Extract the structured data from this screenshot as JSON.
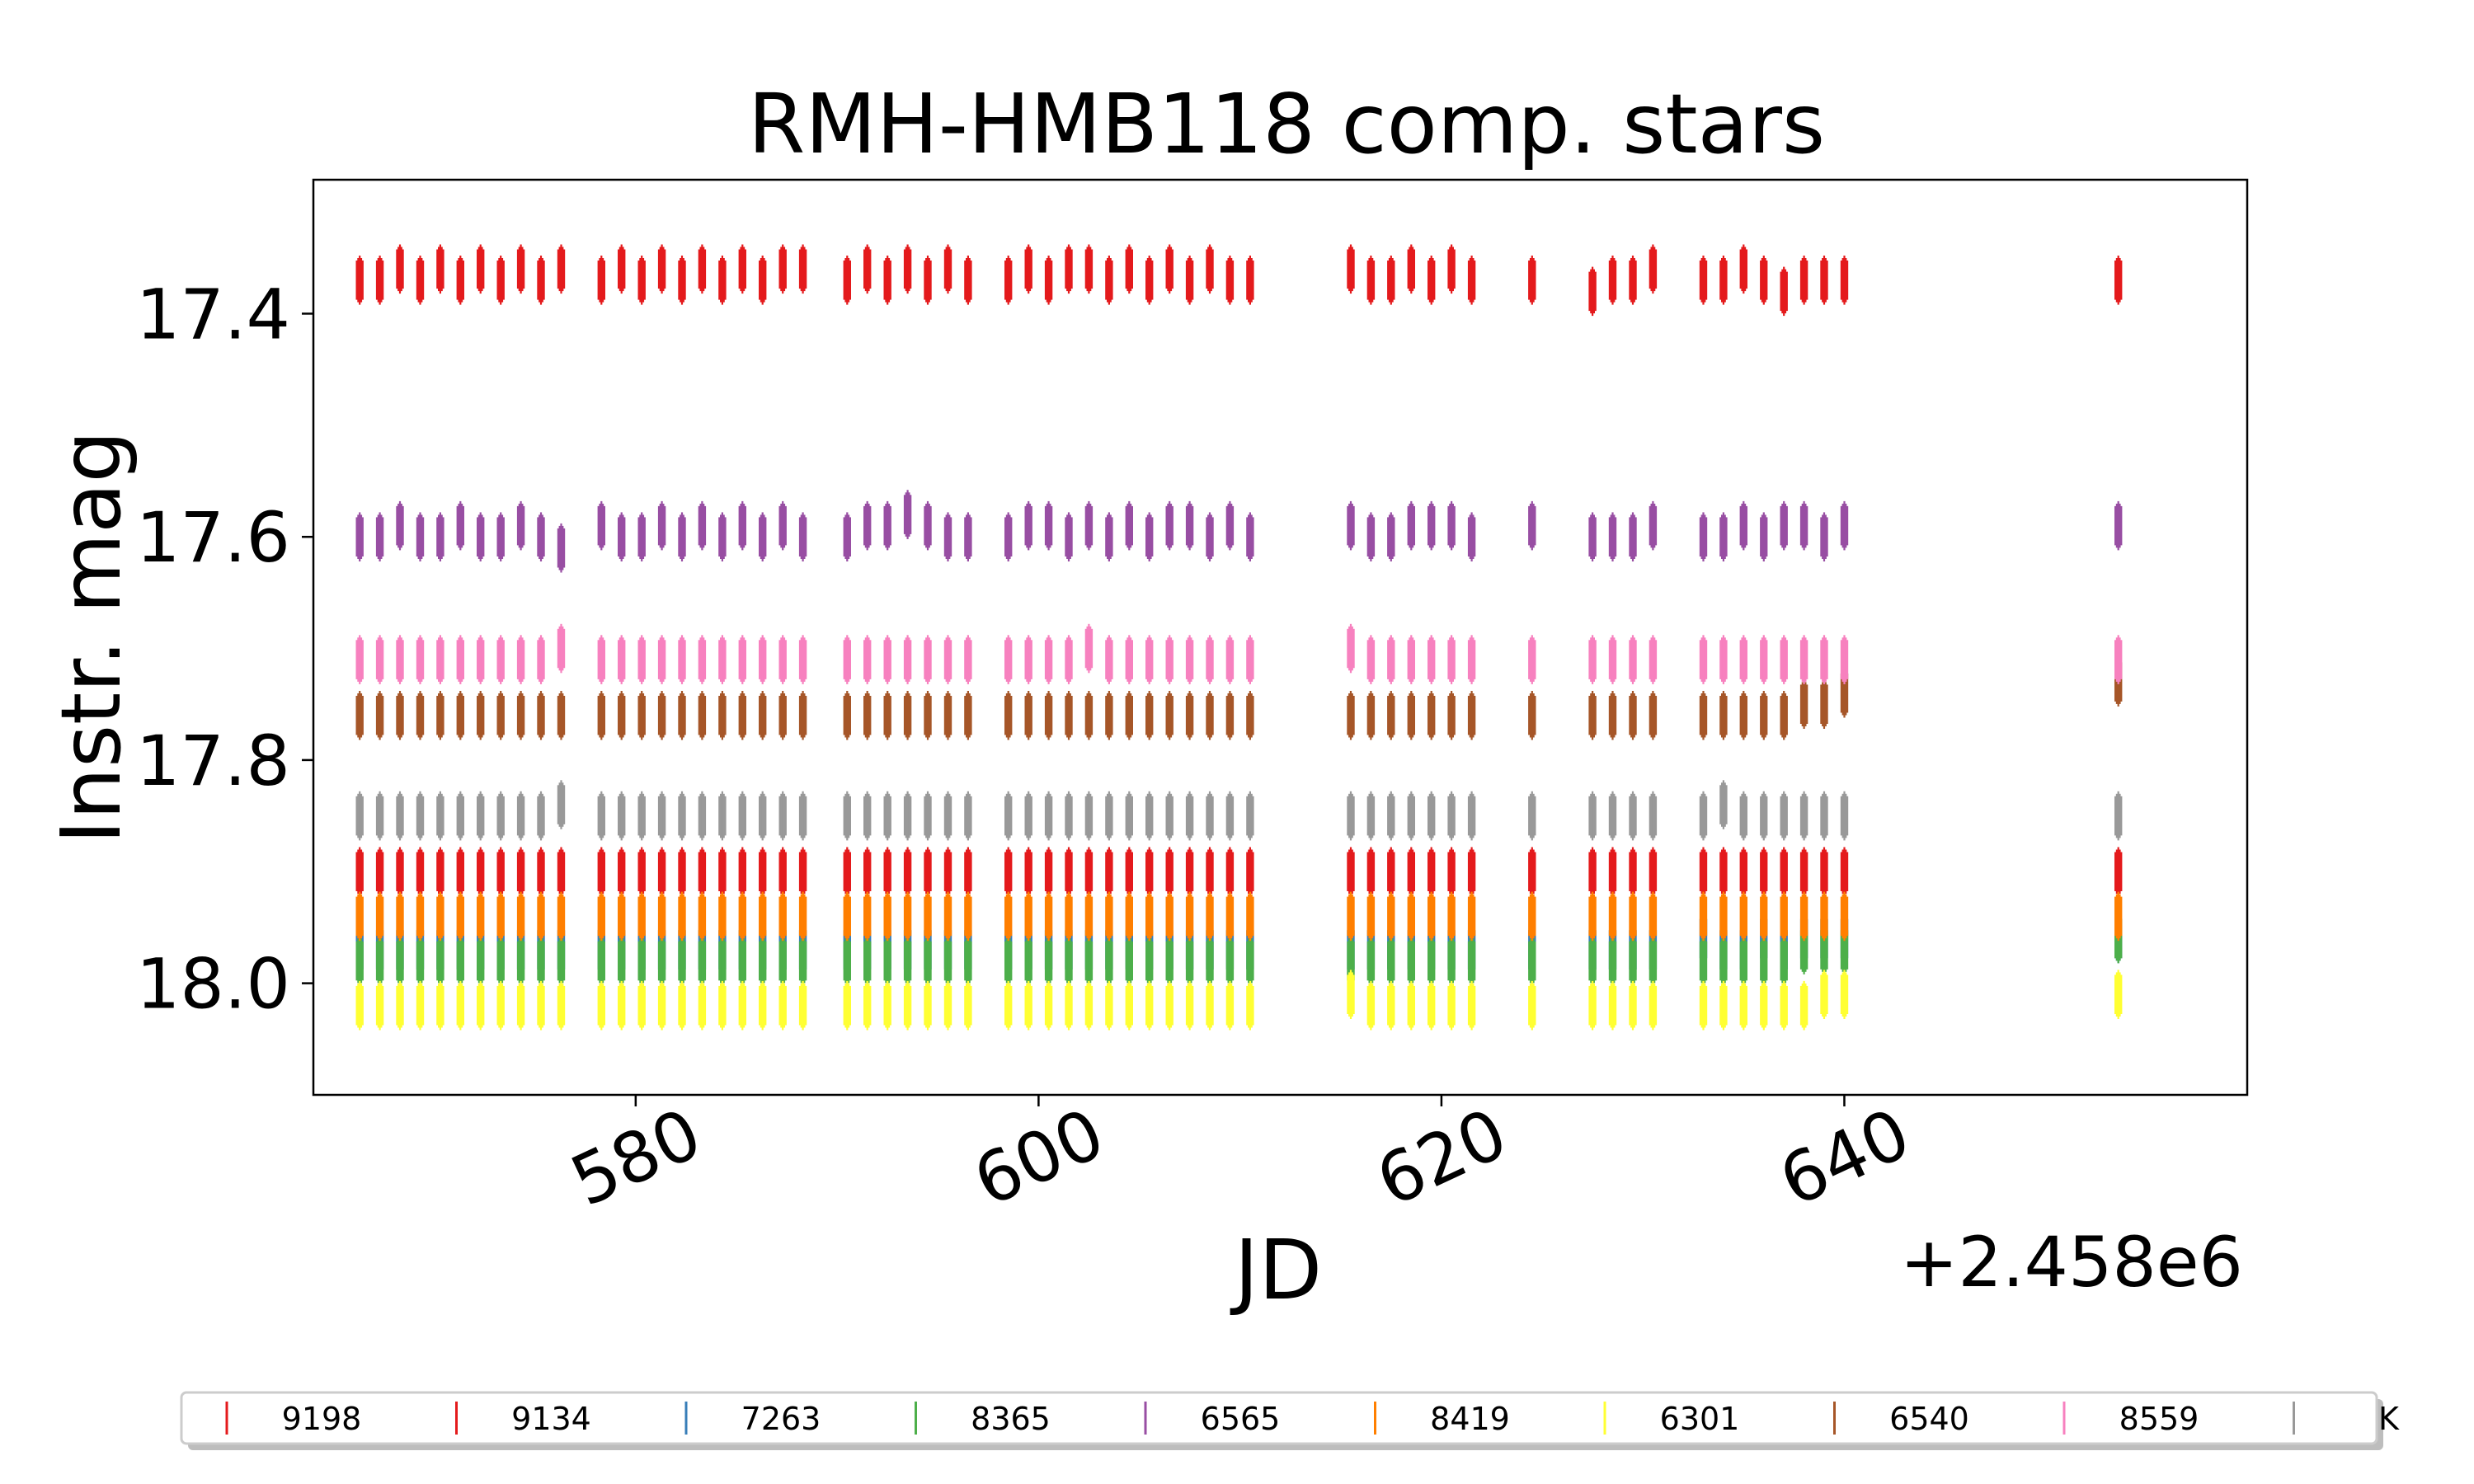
{
  "chart_data": {
    "type": "scatter",
    "title": "RMH-HMB118 comp. stars",
    "xlabel": "JD",
    "ylabel": "Instr. mag",
    "x_offset_label": "+2.458e6",
    "xlim": [
      564,
      660
    ],
    "ylim": [
      18.1,
      17.28
    ],
    "y_inverted": true,
    "xticks": [
      580,
      600,
      620,
      640
    ],
    "xtick_labels": [
      "580",
      "600",
      "620",
      "640"
    ],
    "yticks": [
      17.4,
      17.6,
      17.8,
      18.0
    ],
    "ytick_labels": [
      "17.4",
      "17.6",
      "17.8",
      "18.0"
    ],
    "grid": false,
    "legend_position": "bottom",
    "marker": "vertical line",
    "x_nights": [
      566.3,
      567.3,
      568.3,
      569.3,
      570.3,
      571.3,
      572.3,
      573.3,
      574.3,
      575.3,
      576.3,
      578.3,
      579.3,
      580.3,
      581.3,
      582.3,
      583.3,
      584.3,
      585.3,
      586.3,
      587.3,
      588.3,
      590.5,
      591.5,
      592.5,
      593.5,
      594.5,
      595.5,
      596.5,
      598.5,
      599.5,
      600.5,
      601.5,
      602.5,
      603.5,
      604.5,
      605.5,
      606.5,
      607.5,
      608.5,
      609.5,
      610.5,
      615.5,
      616.5,
      617.5,
      618.5,
      619.5,
      620.5,
      621.5,
      624.5,
      627.5,
      628.5,
      629.5,
      630.5,
      633.0,
      634.0,
      635.0,
      636.0,
      637.0,
      638.0,
      639.0,
      640.0,
      653.6
    ],
    "series": [
      {
        "name": "9198",
        "color": "#e41a1c",
        "values": [
          17.37,
          17.37,
          17.36,
          17.37,
          17.36,
          17.37,
          17.36,
          17.37,
          17.36,
          17.37,
          17.36,
          17.37,
          17.36,
          17.37,
          17.36,
          17.37,
          17.36,
          17.37,
          17.36,
          17.37,
          17.36,
          17.36,
          17.37,
          17.36,
          17.37,
          17.36,
          17.37,
          17.36,
          17.37,
          17.37,
          17.36,
          17.37,
          17.36,
          17.36,
          17.37,
          17.36,
          17.37,
          17.36,
          17.37,
          17.36,
          17.37,
          17.37,
          17.36,
          17.37,
          17.37,
          17.36,
          17.37,
          17.36,
          17.37,
          17.37,
          17.38,
          17.37,
          17.37,
          17.36,
          17.37,
          17.37,
          17.36,
          17.37,
          17.38,
          17.37,
          17.37,
          17.37,
          17.37
        ]
      },
      {
        "name": "9134",
        "color": "#e41a1c",
        "values": [
          17.9,
          17.9,
          17.9,
          17.9,
          17.9,
          17.9,
          17.9,
          17.9,
          17.9,
          17.9,
          17.9,
          17.9,
          17.9,
          17.9,
          17.9,
          17.9,
          17.9,
          17.9,
          17.9,
          17.9,
          17.9,
          17.9,
          17.9,
          17.9,
          17.9,
          17.9,
          17.9,
          17.9,
          17.9,
          17.9,
          17.9,
          17.9,
          17.9,
          17.9,
          17.9,
          17.9,
          17.9,
          17.9,
          17.9,
          17.9,
          17.9,
          17.9,
          17.9,
          17.9,
          17.9,
          17.9,
          17.9,
          17.9,
          17.9,
          17.9,
          17.9,
          17.9,
          17.9,
          17.9,
          17.9,
          17.9,
          17.9,
          17.9,
          17.9,
          17.9,
          17.9,
          17.9,
          17.9
        ]
      },
      {
        "name": "7263",
        "color": "#377eb8",
        "values": [
          17.97,
          17.97,
          17.97,
          17.97,
          17.97,
          17.97,
          17.97,
          17.97,
          17.97,
          17.97,
          17.97,
          17.97,
          17.97,
          17.97,
          17.97,
          17.97,
          17.97,
          17.97,
          17.97,
          17.97,
          17.97,
          17.97,
          17.97,
          17.97,
          17.97,
          17.97,
          17.97,
          17.97,
          17.97,
          17.97,
          17.97,
          17.97,
          17.97,
          17.97,
          17.97,
          17.97,
          17.97,
          17.97,
          17.97,
          17.97,
          17.97,
          17.97,
          17.97,
          17.97,
          17.97,
          17.97,
          17.97,
          17.97,
          17.97,
          17.97,
          17.97,
          17.97,
          17.97,
          17.97,
          17.96,
          17.97,
          17.97,
          17.96,
          17.97,
          17.96,
          17.96,
          17.96,
          17.96
        ]
      },
      {
        "name": "8365",
        "color": "#4daf4a",
        "values": [
          17.98,
          17.98,
          17.98,
          17.98,
          17.98,
          17.98,
          17.98,
          17.98,
          17.98,
          17.98,
          17.98,
          17.98,
          17.98,
          17.98,
          17.98,
          17.98,
          17.98,
          17.98,
          17.98,
          17.98,
          17.98,
          17.98,
          17.98,
          17.98,
          17.98,
          17.98,
          17.98,
          17.98,
          17.98,
          17.98,
          17.98,
          17.98,
          17.98,
          17.98,
          17.98,
          17.98,
          17.98,
          17.98,
          17.98,
          17.98,
          17.98,
          17.98,
          17.98,
          17.98,
          17.98,
          17.98,
          17.98,
          17.98,
          17.98,
          17.98,
          17.98,
          17.98,
          17.98,
          17.98,
          17.98,
          17.98,
          17.98,
          17.98,
          17.98,
          17.97,
          17.97,
          17.97,
          17.96
        ]
      },
      {
        "name": "6565",
        "color": "#984ea3",
        "values": [
          17.6,
          17.6,
          17.59,
          17.6,
          17.6,
          17.59,
          17.6,
          17.6,
          17.59,
          17.6,
          17.61,
          17.59,
          17.6,
          17.6,
          17.59,
          17.6,
          17.59,
          17.6,
          17.59,
          17.6,
          17.59,
          17.6,
          17.6,
          17.59,
          17.59,
          17.58,
          17.59,
          17.6,
          17.6,
          17.6,
          17.59,
          17.59,
          17.6,
          17.59,
          17.6,
          17.59,
          17.6,
          17.59,
          17.59,
          17.6,
          17.59,
          17.6,
          17.59,
          17.6,
          17.6,
          17.59,
          17.59,
          17.59,
          17.6,
          17.59,
          17.6,
          17.6,
          17.6,
          17.59,
          17.6,
          17.6,
          17.59,
          17.6,
          17.59,
          17.59,
          17.6,
          17.59,
          17.59
        ]
      },
      {
        "name": "8419",
        "color": "#ff7f00",
        "values": [
          17.94,
          17.94,
          17.94,
          17.94,
          17.94,
          17.94,
          17.94,
          17.94,
          17.94,
          17.94,
          17.94,
          17.94,
          17.94,
          17.94,
          17.94,
          17.94,
          17.94,
          17.94,
          17.94,
          17.94,
          17.94,
          17.94,
          17.94,
          17.94,
          17.94,
          17.94,
          17.94,
          17.94,
          17.94,
          17.94,
          17.94,
          17.94,
          17.94,
          17.94,
          17.94,
          17.94,
          17.94,
          17.94,
          17.94,
          17.94,
          17.94,
          17.94,
          17.94,
          17.94,
          17.94,
          17.94,
          17.94,
          17.94,
          17.94,
          17.94,
          17.94,
          17.94,
          17.94,
          17.94,
          17.94,
          17.94,
          17.94,
          17.94,
          17.94,
          17.94,
          17.94,
          17.94,
          17.94
        ]
      },
      {
        "name": "6301",
        "color": "#ffff33",
        "values": [
          18.02,
          18.02,
          18.02,
          18.02,
          18.02,
          18.02,
          18.02,
          18.02,
          18.02,
          18.02,
          18.02,
          18.02,
          18.02,
          18.02,
          18.02,
          18.02,
          18.02,
          18.02,
          18.02,
          18.02,
          18.02,
          18.02,
          18.02,
          18.02,
          18.02,
          18.02,
          18.02,
          18.02,
          18.02,
          18.02,
          18.02,
          18.02,
          18.02,
          18.02,
          18.02,
          18.02,
          18.02,
          18.02,
          18.02,
          18.02,
          18.02,
          18.02,
          18.01,
          18.02,
          18.02,
          18.02,
          18.02,
          18.02,
          18.02,
          18.02,
          18.02,
          18.02,
          18.02,
          18.02,
          18.02,
          18.02,
          18.02,
          18.02,
          18.02,
          18.02,
          18.01,
          18.01,
          18.01
        ]
      },
      {
        "name": "6540",
        "color": "#a65628",
        "values": [
          17.76,
          17.76,
          17.76,
          17.76,
          17.76,
          17.76,
          17.76,
          17.76,
          17.76,
          17.76,
          17.76,
          17.76,
          17.76,
          17.76,
          17.76,
          17.76,
          17.76,
          17.76,
          17.76,
          17.76,
          17.76,
          17.76,
          17.76,
          17.76,
          17.76,
          17.76,
          17.76,
          17.76,
          17.76,
          17.76,
          17.76,
          17.76,
          17.76,
          17.76,
          17.76,
          17.76,
          17.76,
          17.76,
          17.76,
          17.76,
          17.76,
          17.76,
          17.76,
          17.76,
          17.76,
          17.76,
          17.76,
          17.76,
          17.76,
          17.76,
          17.76,
          17.76,
          17.76,
          17.76,
          17.76,
          17.76,
          17.76,
          17.76,
          17.76,
          17.75,
          17.75,
          17.74,
          17.73
        ]
      },
      {
        "name": "8559",
        "color": "#f781bf",
        "values": [
          17.71,
          17.71,
          17.71,
          17.71,
          17.71,
          17.71,
          17.71,
          17.71,
          17.71,
          17.71,
          17.7,
          17.71,
          17.71,
          17.71,
          17.71,
          17.71,
          17.71,
          17.71,
          17.71,
          17.71,
          17.71,
          17.71,
          17.71,
          17.71,
          17.71,
          17.71,
          17.71,
          17.71,
          17.71,
          17.71,
          17.71,
          17.71,
          17.71,
          17.7,
          17.71,
          17.71,
          17.71,
          17.71,
          17.71,
          17.71,
          17.71,
          17.71,
          17.7,
          17.71,
          17.71,
          17.71,
          17.71,
          17.71,
          17.71,
          17.71,
          17.71,
          17.71,
          17.71,
          17.71,
          17.71,
          17.71,
          17.71,
          17.71,
          17.71,
          17.71,
          17.71,
          17.71,
          17.71
        ]
      },
      {
        "name": "K",
        "color": "#999999",
        "values": [
          17.85,
          17.85,
          17.85,
          17.85,
          17.85,
          17.85,
          17.85,
          17.85,
          17.85,
          17.85,
          17.84,
          17.85,
          17.85,
          17.85,
          17.85,
          17.85,
          17.85,
          17.85,
          17.85,
          17.85,
          17.85,
          17.85,
          17.85,
          17.85,
          17.85,
          17.85,
          17.85,
          17.85,
          17.85,
          17.85,
          17.85,
          17.85,
          17.85,
          17.85,
          17.85,
          17.85,
          17.85,
          17.85,
          17.85,
          17.85,
          17.85,
          17.85,
          17.85,
          17.85,
          17.85,
          17.85,
          17.85,
          17.85,
          17.85,
          17.85,
          17.85,
          17.85,
          17.85,
          17.85,
          17.85,
          17.84,
          17.85,
          17.85,
          17.85,
          17.85,
          17.85,
          17.85,
          17.85
        ]
      }
    ]
  }
}
